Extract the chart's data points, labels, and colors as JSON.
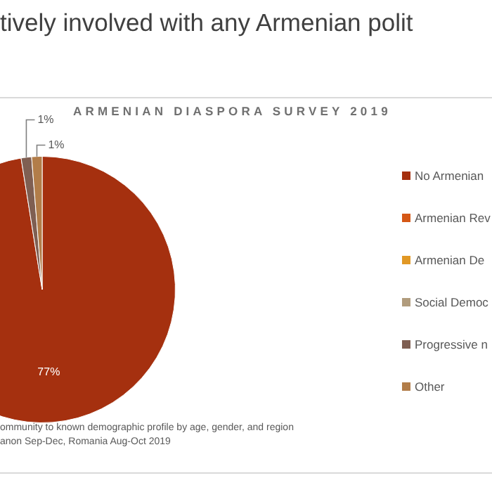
{
  "chart_data": {
    "type": "pie",
    "title": "tively involved with any Armenian polit",
    "subtitle": "ARMENIAN DIASPORA SURVEY 2019",
    "categories": [
      "No Armenian",
      "Armenian Rev",
      "Armenian De",
      "Social Democ",
      "Progressive n",
      "Other"
    ],
    "values": [
      77,
      null,
      null,
      null,
      1,
      1
    ],
    "colors": [
      "#a5300f",
      "#d55816",
      "#e19825",
      "#b19c7d",
      "#7f5f52",
      "#b27d49"
    ],
    "value_labels": [
      "77%",
      null,
      null,
      null,
      "1%",
      "1%"
    ],
    "legend": "right",
    "annotations": [
      "ommunity to known demographic profile by age, gender, and region",
      "anon Sep-Dec, Romania Aug-Oct 2019"
    ]
  }
}
